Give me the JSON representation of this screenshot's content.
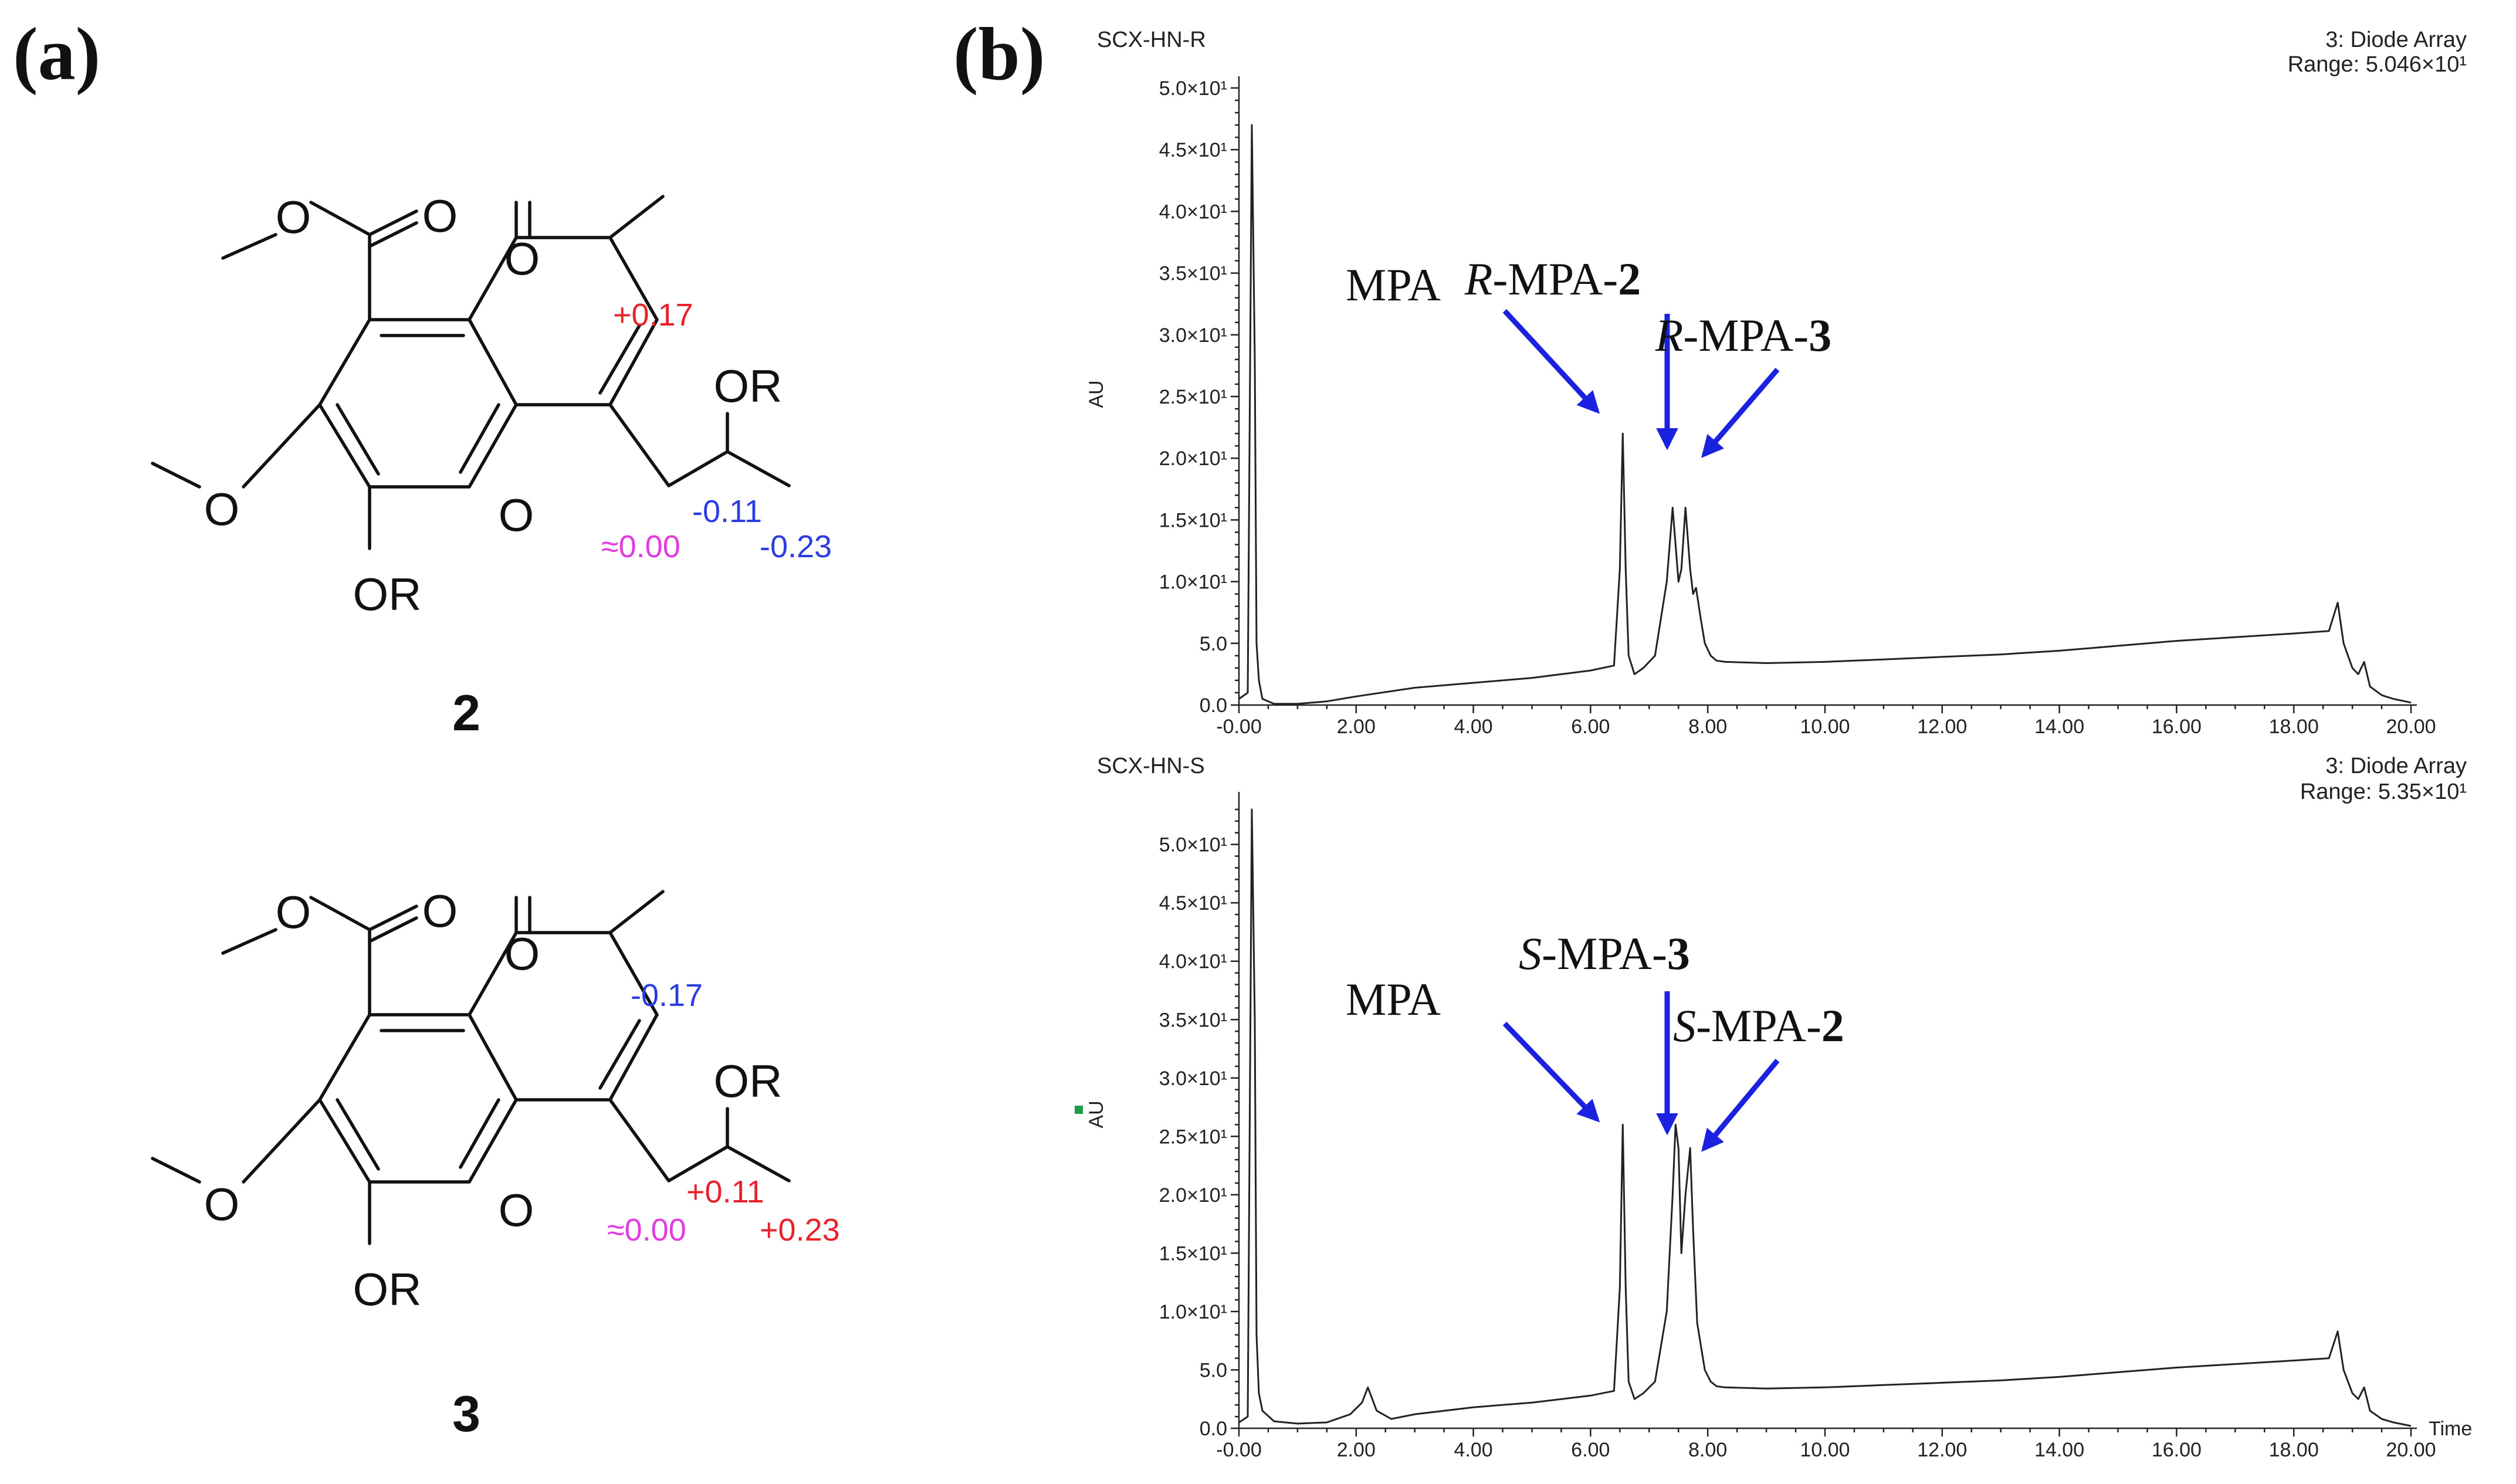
{
  "panel_labels": {
    "a": "(a)",
    "b": "(b)"
  },
  "structures": [
    {
      "label": "2",
      "atoms": {
        "o1": "O",
        "o2": "O",
        "o3": "O",
        "o4": "O",
        "o5": "O",
        "or1": "OR",
        "or2": "OR"
      },
      "deltas": [
        {
          "text": "+0.17",
          "color": "#e8212a"
        },
        {
          "text": "-0.11",
          "color": "#2b3de0"
        },
        {
          "text": "≈0.00",
          "color": "#e03ce0"
        },
        {
          "text": "-0.23",
          "color": "#2b3de0"
        }
      ]
    },
    {
      "label": "3",
      "atoms": {
        "o1": "O",
        "o2": "O",
        "o3": "O",
        "o4": "O",
        "o5": "O",
        "or1": "OR",
        "or2": "OR"
      },
      "deltas": [
        {
          "text": "-0.17",
          "color": "#2b3de0"
        },
        {
          "text": "+0.11",
          "color": "#e8212a"
        },
        {
          "text": "≈0.00",
          "color": "#e03ce0"
        },
        {
          "text": "+0.23",
          "color": "#e8212a"
        }
      ]
    }
  ],
  "chart_data": [
    {
      "type": "line",
      "sample": "SCX-HN-R",
      "detector": "3: Diode Array",
      "range": "Range: 5.046×10¹",
      "header_color": "#222222",
      "ylabel": "AU",
      "xlabel": "",
      "ylim": [
        0,
        50
      ],
      "xlim": [
        0,
        20
      ],
      "y_ticks": [
        "0.0",
        "5.0",
        "1.0×10¹",
        "1.5×10¹",
        "2.0×10¹",
        "2.5×10¹",
        "3.0×10¹",
        "3.5×10¹",
        "4.0×10¹",
        "4.5×10¹",
        "5.0×10¹"
      ],
      "x_ticks": [
        "-0.00",
        "2.00",
        "4.00",
        "6.00",
        "8.00",
        "10.00",
        "12.00",
        "14.00",
        "16.00",
        "18.00",
        "20.00"
      ],
      "x": [
        0,
        0.15,
        0.22,
        0.27,
        0.3,
        0.34,
        0.4,
        0.6,
        1.0,
        1.5,
        2.0,
        3,
        4,
        5,
        6,
        6.4,
        6.5,
        6.55,
        6.6,
        6.65,
        6.75,
        6.9,
        7.1,
        7.3,
        7.4,
        7.45,
        7.5,
        7.55,
        7.62,
        7.7,
        7.75,
        7.8,
        7.88,
        7.95,
        8.05,
        8.15,
        8.3,
        9,
        10,
        11,
        12,
        13,
        14,
        15,
        16,
        17,
        18,
        18.6,
        18.75,
        18.85,
        19.0,
        19.1,
        19.2,
        19.3,
        19.5,
        19.7,
        19.9,
        20.0
      ],
      "y": [
        0.5,
        1,
        47,
        28,
        5,
        2,
        0.5,
        0.1,
        0.1,
        0.3,
        0.7,
        1.4,
        1.8,
        2.2,
        2.8,
        3.2,
        11,
        22,
        11,
        4,
        2.5,
        3,
        4,
        10,
        16,
        13,
        10,
        11,
        16,
        11,
        9,
        9.5,
        7,
        5,
        4,
        3.6,
        3.5,
        3.4,
        3.5,
        3.7,
        3.9,
        4.1,
        4.4,
        4.8,
        5.2,
        5.5,
        5.8,
        6,
        8.3,
        5,
        3,
        2.5,
        3.5,
        1.5,
        0.8,
        0.5,
        0.3,
        0.2
      ],
      "annotations": [
        {
          "parts": [
            {
              "t": "MPA",
              "s": "normal"
            }
          ]
        },
        {
          "parts": [
            {
              "t": "R",
              "s": "italic"
            },
            {
              "t": "-MPA-",
              "s": "normal"
            },
            {
              "t": "2",
              "s": "bold"
            }
          ]
        },
        {
          "parts": [
            {
              "t": "R",
              "s": "italic"
            },
            {
              "t": "-MPA-",
              "s": "normal"
            },
            {
              "t": "3",
              "s": "bold"
            }
          ]
        }
      ]
    },
    {
      "type": "line",
      "sample": "SCX-HN-S",
      "detector": "3: Diode Array",
      "range": "Range: 5.35×10¹",
      "header_color": "#1f9a4a",
      "ylabel": "AU",
      "xlabel": "Time",
      "ylim": [
        0,
        53.5
      ],
      "xlim": [
        0,
        20
      ],
      "y_ticks": [
        "0.0",
        "5.0",
        "1.0×10¹",
        "1.5×10¹",
        "2.0×10¹",
        "2.5×10¹",
        "3.0×10¹",
        "3.5×10¹",
        "4.0×10¹",
        "4.5×10¹",
        "5.0×10¹"
      ],
      "x_ticks": [
        "-0.00",
        "2.00",
        "4.00",
        "6.00",
        "8.00",
        "10.00",
        "12.00",
        "14.00",
        "16.00",
        "18.00",
        "20.00"
      ],
      "x": [
        0,
        0.15,
        0.22,
        0.27,
        0.3,
        0.34,
        0.4,
        0.6,
        1.0,
        1.5,
        1.9,
        2.1,
        2.2,
        2.35,
        2.6,
        3,
        4,
        5,
        6,
        6.4,
        6.5,
        6.55,
        6.6,
        6.65,
        6.75,
        6.9,
        7.1,
        7.3,
        7.4,
        7.45,
        7.5,
        7.55,
        7.62,
        7.7,
        7.75,
        7.82,
        7.95,
        8.05,
        8.15,
        8.3,
        9,
        10,
        11,
        12,
        13,
        14,
        15,
        16,
        17,
        18,
        18.6,
        18.75,
        18.85,
        19.0,
        19.1,
        19.2,
        19.3,
        19.5,
        19.7,
        19.9,
        20.0
      ],
      "y": [
        0.5,
        1,
        53,
        35,
        8,
        3,
        1.5,
        0.6,
        0.4,
        0.5,
        1.2,
        2.2,
        3.5,
        1.5,
        0.8,
        1.2,
        1.8,
        2.2,
        2.8,
        3.2,
        12,
        26,
        12,
        4,
        2.5,
        3,
        4,
        10,
        20,
        26,
        24,
        15,
        20,
        24,
        17,
        9,
        5,
        4,
        3.6,
        3.5,
        3.4,
        3.5,
        3.7,
        3.9,
        4.1,
        4.4,
        4.8,
        5.2,
        5.5,
        5.8,
        6,
        8.3,
        5,
        3,
        2.5,
        3.5,
        1.5,
        0.8,
        0.5,
        0.3,
        0.2
      ],
      "annotations": [
        {
          "parts": [
            {
              "t": "MPA",
              "s": "normal"
            }
          ]
        },
        {
          "parts": [
            {
              "t": "S",
              "s": "italic"
            },
            {
              "t": "-MPA-",
              "s": "normal"
            },
            {
              "t": "3",
              "s": "bold"
            }
          ]
        },
        {
          "parts": [
            {
              "t": "S",
              "s": "italic"
            },
            {
              "t": "-MPA-",
              "s": "normal"
            },
            {
              "t": "2",
              "s": "bold"
            }
          ]
        }
      ]
    }
  ],
  "colors": {
    "arrow": "#1a22e0",
    "trace": "#222222",
    "marker": "#1f9a4a"
  }
}
